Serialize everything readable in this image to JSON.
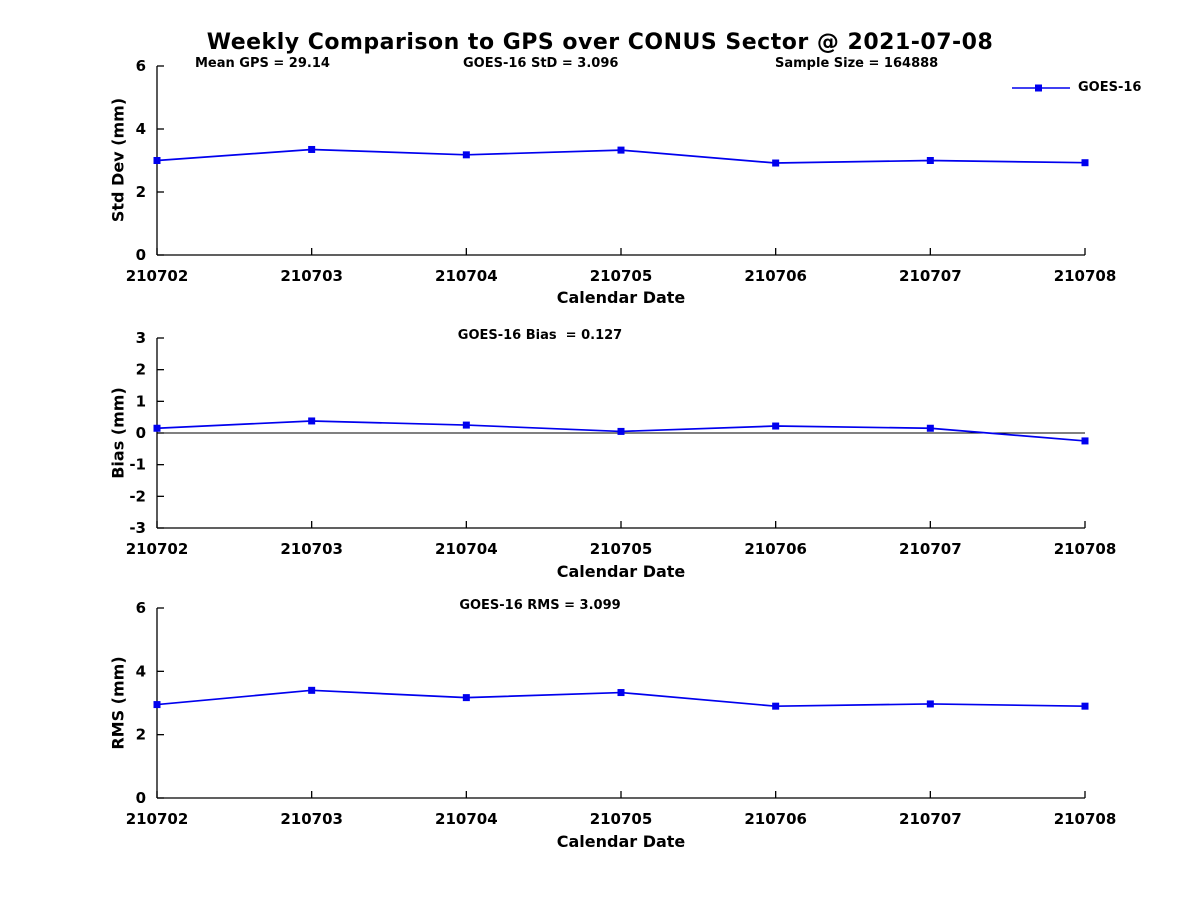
{
  "title": "Weekly Comparison to GPS over CONUS Sector @ 2021-07-08",
  "legend": {
    "label": "GOES-16"
  },
  "colors": {
    "series": "#0000EE",
    "axis": "#000000",
    "zero_line": "#000000"
  },
  "chart_data": [
    {
      "id": "std-dev",
      "type": "line",
      "annotations": [
        "Mean GPS = 29.14",
        "GOES-16 StD = 3.096",
        "Sample Size = 164888"
      ],
      "categories": [
        "210702",
        "210703",
        "210704",
        "210705",
        "210706",
        "210707",
        "210708"
      ],
      "series": [
        {
          "name": "GOES-16",
          "values": [
            3.0,
            3.35,
            3.18,
            3.33,
            2.92,
            3.0,
            2.93
          ]
        }
      ],
      "xlabel": "Calendar Date",
      "ylabel": "Std Dev (mm)",
      "ylim": [
        0,
        6
      ],
      "yticks": [
        0,
        2,
        4,
        6
      ],
      "zero_line": false,
      "legend_position": "top-right",
      "grid": false
    },
    {
      "id": "bias",
      "type": "line",
      "annotations": [
        "GOES-16 Bias  = 0.127"
      ],
      "categories": [
        "210702",
        "210703",
        "210704",
        "210705",
        "210706",
        "210707",
        "210708"
      ],
      "series": [
        {
          "name": "GOES-16",
          "values": [
            0.15,
            0.38,
            0.25,
            0.05,
            0.22,
            0.15,
            -0.25
          ]
        }
      ],
      "xlabel": "Calendar Date",
      "ylabel": "Bias (mm)",
      "ylim": [
        -3,
        3
      ],
      "yticks": [
        -3,
        -2,
        -1,
        0,
        1,
        2,
        3
      ],
      "zero_line": true,
      "grid": false
    },
    {
      "id": "rms",
      "type": "line",
      "annotations": [
        "GOES-16 RMS = 3.099"
      ],
      "categories": [
        "210702",
        "210703",
        "210704",
        "210705",
        "210706",
        "210707",
        "210708"
      ],
      "series": [
        {
          "name": "GOES-16",
          "values": [
            2.95,
            3.4,
            3.17,
            3.33,
            2.9,
            2.97,
            2.9
          ]
        }
      ],
      "xlabel": "Calendar Date",
      "ylabel": "RMS (mm)",
      "ylim": [
        0,
        6
      ],
      "yticks": [
        0,
        2,
        4,
        6
      ],
      "zero_line": false,
      "grid": false
    }
  ]
}
